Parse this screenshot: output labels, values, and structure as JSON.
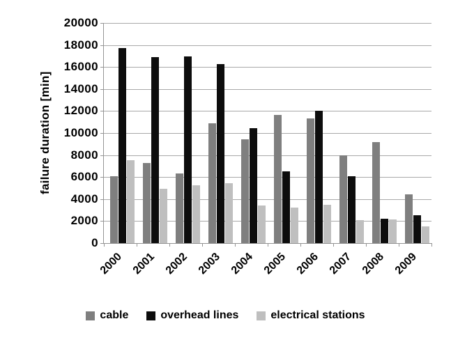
{
  "chart_data": {
    "type": "bar",
    "title": "",
    "xlabel": "",
    "ylabel": "failure duration [min]",
    "ylim": [
      0,
      20000
    ],
    "ytick_step": 2000,
    "yticks": [
      0,
      2000,
      4000,
      6000,
      8000,
      10000,
      12000,
      14000,
      16000,
      18000,
      20000
    ],
    "grid": true,
    "legend_position": "bottom",
    "categories": [
      "2000",
      "2001",
      "2002",
      "2003",
      "2004",
      "2005",
      "2006",
      "2007",
      "2008",
      "2009"
    ],
    "series": [
      {
        "name": "cable",
        "color": "#7f7f7f",
        "values": [
          6050,
          7300,
          6300,
          10900,
          9400,
          11650,
          11350,
          8000,
          9150,
          4450
        ]
      },
      {
        "name": "overhead lines",
        "color": "#0d0d0d",
        "values": [
          17700,
          16900,
          16950,
          16250,
          10450,
          6550,
          12000,
          6100,
          2200,
          2500
        ]
      },
      {
        "name": "electrical stations",
        "color": "#bfbfbf",
        "values": [
          7500,
          4950,
          5250,
          5450,
          3400,
          3250,
          3450,
          2100,
          2150,
          1500
        ]
      }
    ]
  },
  "colors": {
    "gridline": "#a8a8a8",
    "axis": "#949494",
    "background": "#ffffff",
    "text": "#000000"
  }
}
